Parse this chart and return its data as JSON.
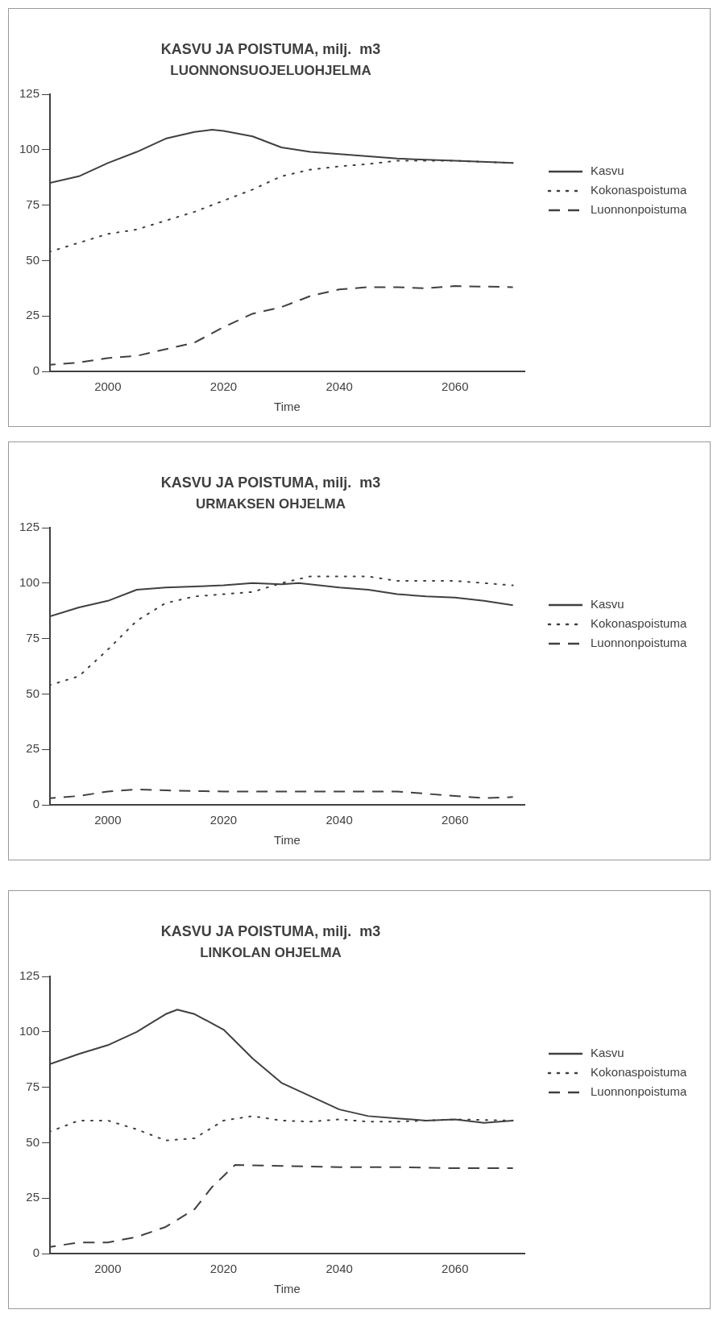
{
  "chart_data": [
    {
      "type": "line",
      "title": "KASVU JA POISTUMA, milj.  m3",
      "subtitle": "LUONNONSUOJELUOHJELMA",
      "xlabel": "Time",
      "xlim": [
        1990,
        2072
      ],
      "ylim": [
        0,
        125
      ],
      "xticks": [
        2000,
        2020,
        2040,
        2060
      ],
      "yticks": [
        0,
        25,
        50,
        75,
        100,
        125
      ],
      "grid": false,
      "legend": "right",
      "marker": "none",
      "series": [
        {
          "name": "Kasvu",
          "color": "#404040",
          "line_style": "solid",
          "x": [
            1990,
            1995,
            2000,
            2005,
            2010,
            2015,
            2018,
            2020,
            2025,
            2030,
            2035,
            2040,
            2045,
            2050,
            2060,
            2070
          ],
          "values": [
            85,
            88,
            94,
            99,
            105,
            108,
            109,
            108.5,
            106,
            101,
            99,
            98,
            97,
            96,
            95,
            94
          ]
        },
        {
          "name": "Kokonaspoistuma",
          "color": "#404040",
          "line_style": "dotted",
          "x": [
            1990,
            1995,
            2000,
            2005,
            2010,
            2015,
            2020,
            2025,
            2030,
            2035,
            2040,
            2045,
            2050,
            2060,
            2070
          ],
          "values": [
            54,
            58,
            62,
            64,
            68,
            72,
            77,
            82,
            88,
            91,
            92.5,
            93.5,
            95,
            95,
            94
          ]
        },
        {
          "name": "Luonnonpoistuma",
          "color": "#404040",
          "line_style": "dashed",
          "x": [
            1990,
            1995,
            2000,
            2005,
            2010,
            2015,
            2020,
            2025,
            2030,
            2035,
            2040,
            2045,
            2050,
            2055,
            2060,
            2070
          ],
          "values": [
            3,
            4,
            6,
            7,
            10,
            13,
            20,
            26,
            29,
            34,
            37,
            38,
            38,
            37.5,
            38.5,
            38
          ]
        }
      ]
    },
    {
      "type": "line",
      "title": "KASVU JA POISTUMA, milj.  m3",
      "subtitle": "URMAKSEN OHJELMA",
      "xlabel": "Time",
      "xlim": [
        1990,
        2072
      ],
      "ylim": [
        0,
        125
      ],
      "xticks": [
        2000,
        2020,
        2040,
        2060
      ],
      "yticks": [
        0,
        25,
        50,
        75,
        100,
        125
      ],
      "grid": false,
      "legend": "right",
      "marker": "none",
      "series": [
        {
          "name": "Kasvu",
          "color": "#404040",
          "line_style": "solid",
          "x": [
            1990,
            1995,
            2000,
            2005,
            2010,
            2015,
            2020,
            2025,
            2030,
            2033,
            2040,
            2045,
            2050,
            2055,
            2060,
            2065,
            2070
          ],
          "values": [
            85,
            89,
            92,
            97,
            98,
            98.5,
            99,
            100,
            99.5,
            100,
            98,
            97,
            95,
            94,
            93.5,
            92,
            90
          ]
        },
        {
          "name": "Kokonaspoistuma",
          "color": "#404040",
          "line_style": "dotted",
          "x": [
            1990,
            1995,
            2000,
            2005,
            2010,
            2015,
            2020,
            2025,
            2030,
            2035,
            2040,
            2045,
            2050,
            2060,
            2065,
            2070
          ],
          "values": [
            54,
            58,
            70,
            83,
            91,
            94,
            95,
            96,
            100,
            103,
            103,
            103,
            101,
            101,
            100,
            99
          ]
        },
        {
          "name": "Luonnonpoistuma",
          "color": "#404040",
          "line_style": "dashed",
          "x": [
            1990,
            1995,
            2000,
            2005,
            2010,
            2020,
            2050,
            2055,
            2060,
            2065,
            2070
          ],
          "values": [
            3,
            4,
            6,
            7,
            6.5,
            6,
            6,
            5,
            4,
            3,
            3.5
          ]
        }
      ]
    },
    {
      "type": "line",
      "title": "KASVU JA POISTUMA, milj.  m3",
      "subtitle": "LINKOLAN OHJELMA",
      "xlabel": "Time",
      "xlim": [
        1990,
        2072
      ],
      "ylim": [
        0,
        125
      ],
      "xticks": [
        2000,
        2020,
        2040,
        2060
      ],
      "yticks": [
        0,
        25,
        50,
        75,
        100,
        125
      ],
      "grid": false,
      "legend": "right",
      "marker": "none",
      "series": [
        {
          "name": "Kasvu",
          "color": "#404040",
          "line_style": "solid",
          "x": [
            1990,
            1995,
            2000,
            2005,
            2010,
            2012,
            2015,
            2020,
            2025,
            2030,
            2035,
            2040,
            2045,
            2050,
            2055,
            2060,
            2065,
            2070
          ],
          "values": [
            85.5,
            90,
            94,
            100,
            108,
            110,
            108,
            101,
            88,
            77,
            71,
            65,
            62,
            61,
            60,
            60.5,
            59,
            60
          ]
        },
        {
          "name": "Kokonaspoistuma",
          "color": "#404040",
          "line_style": "dotted",
          "x": [
            1990,
            1995,
            2000,
            2005,
            2010,
            2015,
            2020,
            2025,
            2030,
            2035,
            2040,
            2045,
            2050,
            2060,
            2070
          ],
          "values": [
            55,
            60,
            60,
            56,
            51,
            52,
            60,
            62,
            60,
            59.5,
            60.5,
            59.5,
            59.5,
            60.5,
            60
          ]
        },
        {
          "name": "Luonnonpoistuma",
          "color": "#404040",
          "line_style": "dashed",
          "x": [
            1990,
            1995,
            2000,
            2005,
            2010,
            2015,
            2018,
            2020,
            2022,
            2030,
            2040,
            2050,
            2060,
            2070
          ],
          "values": [
            3,
            5,
            5,
            7.5,
            12,
            20,
            30,
            35,
            40,
            39.5,
            39,
            39,
            38.5,
            38.5
          ]
        }
      ]
    }
  ]
}
